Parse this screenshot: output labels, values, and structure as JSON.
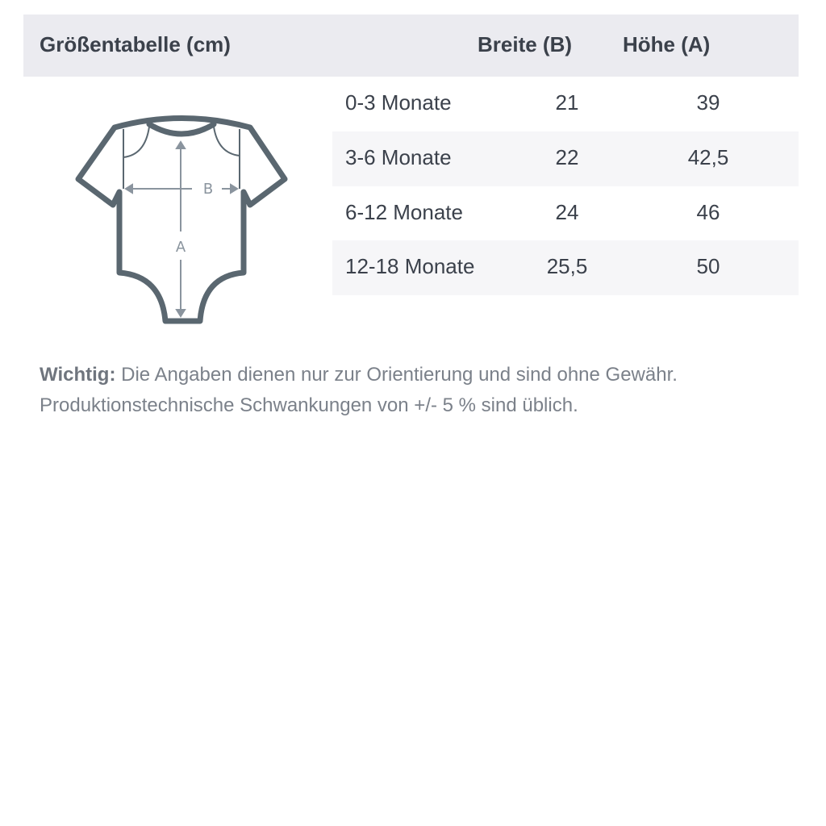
{
  "header": {
    "title": "Größentabelle (cm)",
    "col_width": "Breite (B)",
    "col_height": "Höhe (A)"
  },
  "rows": [
    {
      "size": "0-3 Monate",
      "width": "21",
      "height": "39"
    },
    {
      "size": "3-6 Monate",
      "width": "22",
      "height": "42,5"
    },
    {
      "size": "6-12 Monate",
      "width": "24",
      "height": "46"
    },
    {
      "size": "12-18 Monate",
      "width": "25,5",
      "height": "50"
    }
  ],
  "diagram": {
    "label_width": "B",
    "label_height": "A",
    "outline_color": "#5a6770",
    "arrow_color": "#8a949e"
  },
  "note": {
    "label": "Wichtig:",
    "line1": "Die Angaben dienen nur zur Orientierung und sind ohne Gewähr.",
    "line2": "Produktionstechnische Schwankungen von +/- 5 % sind üblich."
  }
}
